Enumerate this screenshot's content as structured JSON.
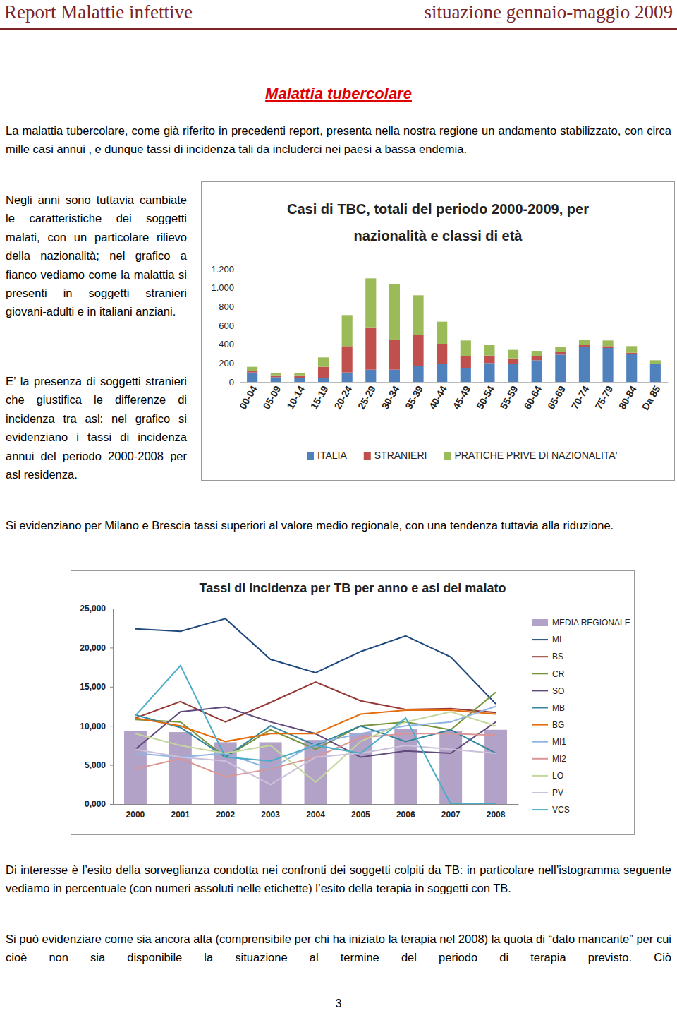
{
  "header": {
    "left": "Report Malattie infettive",
    "right": "situazione gennaio-maggio 2009"
  },
  "title": "Malattia tubercolare",
  "paragraphs": [
    "La malattia tubercolare, come già riferito in precedenti report, presenta nella nostra regione un andamento stabilizzato, con circa mille casi annui , e dunque tassi di incidenza tali da includerci nei paesi a bassa endemia.",
    "Negli anni sono tuttavia cambiate le caratteristiche dei soggetti malati, con un particolare rilievo della nazionalità; nel grafico a fianco vediamo come la malattia si presenti in soggetti stranieri giovani-adulti e in italiani anziani.",
    "E’ la presenza di soggetti stranieri che giustifica le differenze di incidenza tra asl: nel grafico si evidenziano i tassi di incidenza annui del periodo 2000-2008 per asl residenza.",
    "Si evidenziano per Milano e  Brescia  tassi superiori al valore medio regionale, con una tendenza tuttavia alla riduzione.",
    "Di interesse è l’esito della sorveglianza condotta nei confronti dei soggetti colpiti da TB: in particolare nell’istogramma seguente vediamo in percentuale (con numeri assoluti nelle etichette) l’esito della terapia in soggetti con TB.",
    "Si  può evidenziare come sia ancora alta (comprensibile per chi ha iniziato la terapia nel 2008) la quota di “dato mancante” per cui cioè non sia disponibile la situazione al termine del periodo di terapia previsto. Ciò"
  ],
  "chart_data": [
    {
      "type": "bar",
      "title": [
        "Casi di TBC, totali del periodo 2000-2009, per",
        "nazionalità e classi di età"
      ],
      "categories": [
        "00-04",
        "05-09",
        "10-14",
        "15-19",
        "20-24",
        "25-29",
        "30-34",
        "35-39",
        "40-44",
        "45-49",
        "50-54",
        "55-59",
        "60-64",
        "65-69",
        "70-74",
        "75-79",
        "80-84",
        "Da 85"
      ],
      "stacked": true,
      "legend": "bottom",
      "grid": false,
      "ylim": [
        0,
        1200
      ],
      "yticks": [
        0,
        200,
        400,
        600,
        800,
        {
          "value": 1000,
          "label": "1.000"
        },
        {
          "value": 1200,
          "label": "1.200"
        }
      ],
      "series": [
        {
          "name": "ITALIA",
          "color": "#4F81BD",
          "values": [
            100,
            50,
            40,
            40,
            100,
            130,
            130,
            170,
            190,
            150,
            200,
            190,
            230,
            290,
            370,
            360,
            300,
            190
          ]
        },
        {
          "name": "STRANIERI",
          "color": "#C0504D",
          "values": [
            20,
            20,
            30,
            120,
            280,
            450,
            320,
            330,
            210,
            120,
            80,
            60,
            40,
            30,
            20,
            20,
            10,
            5
          ]
        },
        {
          "name": "PRATICHE PRIVE DI NAZIONALITA'",
          "color": "#9BBB59",
          "values": [
            40,
            20,
            25,
            100,
            330,
            520,
            590,
            420,
            240,
            170,
            110,
            90,
            60,
            50,
            60,
            60,
            70,
            35
          ]
        }
      ]
    },
    {
      "type": "bar",
      "title": "Tassi di incidenza per TB per anno e asl del malato",
      "categories": [
        "2000",
        "2001",
        "2002",
        "2003",
        "2004",
        "2005",
        "2006",
        "2007",
        "2008"
      ],
      "legend": "right",
      "grid": false,
      "ylim": [
        0,
        25
      ],
      "yticks": [
        {
          "value": 0,
          "label": "0,000"
        },
        {
          "value": 5,
          "label": "5,000"
        },
        {
          "value": 10,
          "label": "10,000"
        },
        {
          "value": 15,
          "label": "15,000"
        },
        {
          "value": 20,
          "label": "20,000"
        },
        {
          "value": 25,
          "label": "25,000"
        }
      ],
      "series": [
        {
          "name": "MEDIA REGIONALE",
          "type": "bar",
          "color": "#B3A2C7",
          "values": [
            9.3,
            9.2,
            7.9,
            7.9,
            8.2,
            9.1,
            9.6,
            9.3,
            9.5
          ]
        },
        {
          "name": "MI",
          "type": "line",
          "color": "#1F497D",
          "values": [
            22.4,
            22.1,
            23.7,
            18.5,
            16.8,
            19.5,
            21.5,
            18.8,
            12.8
          ]
        },
        {
          "name": "BS",
          "type": "line",
          "color": "#953735",
          "values": [
            11.0,
            13.1,
            10.5,
            13.0,
            15.6,
            13.2,
            12.1,
            12.2,
            11.7
          ]
        },
        {
          "name": "CR",
          "type": "line",
          "color": "#77933C",
          "values": [
            10.8,
            10.5,
            6.0,
            9.5,
            7.0,
            10.0,
            10.5,
            9.5,
            14.3
          ]
        },
        {
          "name": "SO",
          "type": "line",
          "color": "#604A7B",
          "values": [
            7.0,
            11.8,
            12.4,
            10.5,
            9.0,
            6.0,
            6.8,
            6.5,
            10.5
          ]
        },
        {
          "name": "MB",
          "type": "line",
          "color": "#31859C",
          "values": [
            11.4,
            9.8,
            6.0,
            10.0,
            7.5,
            10.0,
            8.0,
            9.5,
            6.5
          ]
        },
        {
          "name": "BG",
          "type": "line",
          "color": "#E46C0A",
          "values": [
            11.0,
            10.0,
            8.0,
            9.0,
            9.0,
            11.5,
            12.0,
            12.0,
            11.5
          ]
        },
        {
          "name": "MI1",
          "type": "line",
          "color": "#8EB4E3",
          "values": [
            6.5,
            6.0,
            6.5,
            4.5,
            7.8,
            9.0,
            10.0,
            10.5,
            12.5
          ]
        },
        {
          "name": "MI2",
          "type": "line",
          "color": "#D99694",
          "values": [
            4.5,
            5.8,
            3.5,
            4.5,
            6.0,
            8.5,
            9.0,
            9.0,
            8.8
          ]
        },
        {
          "name": "LO",
          "type": "line",
          "color": "#C3D69B",
          "values": [
            9.0,
            7.5,
            6.5,
            7.5,
            2.8,
            8.0,
            10.5,
            11.8,
            10.0
          ]
        },
        {
          "name": "PV",
          "type": "line",
          "color": "#CCC1DA",
          "values": [
            7.0,
            6.0,
            5.5,
            2.5,
            6.0,
            6.5,
            7.5,
            7.0,
            6.5
          ]
        },
        {
          "name": "VCS",
          "type": "line",
          "color": "#4BACC6",
          "values": [
            11.3,
            17.7,
            6.0,
            5.5,
            7.5,
            6.5,
            11.0,
            0.0,
            0.0
          ]
        }
      ]
    }
  ],
  "page_number": "3"
}
